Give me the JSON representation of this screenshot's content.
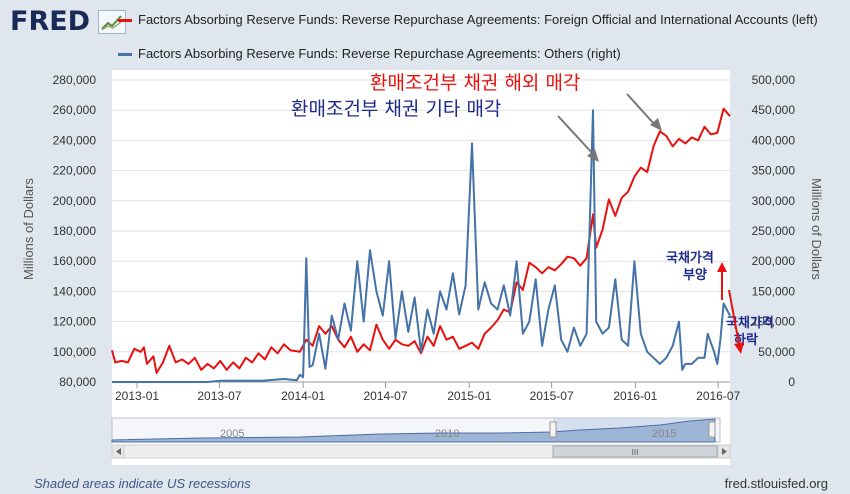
{
  "header": {
    "logo_text": "FRED",
    "logo_icon": "line-chart-icon",
    "legend": [
      {
        "label": "Factors Absorbing Reserve Funds: Reverse Repurchase Agreements: Foreign Official and International Accounts (left)",
        "color": "#e8110f"
      },
      {
        "label": "Factors Absorbing Reserve Funds: Reverse Repurchase Agreements: Others (right)",
        "color": "#4572a7"
      }
    ]
  },
  "annotations": {
    "foreign_sale": "환매조건부 채권 해외 매각",
    "other_sale": "환매조건부 채권 기타 매각",
    "bond_price_up_line1": "국채가격",
    "bond_price_up_line2": "부양",
    "bond_price_down_line1": "국채가격",
    "bond_price_down_line2": "하락"
  },
  "navigator": {
    "year_labels": [
      "2005",
      "2010",
      "2015"
    ],
    "scroll_grip": "III"
  },
  "footer": {
    "recession_note": "Shaded areas indicate US recessions",
    "source": "fred.stlouisfed.org"
  },
  "chart_data": {
    "type": "line",
    "xlabel": "",
    "x_ticks": [
      "2013-01",
      "2013-07",
      "2014-01",
      "2014-07",
      "2015-01",
      "2015-07",
      "2016-01",
      "2016-07"
    ],
    "x_range": [
      "2012-11-07",
      "2016-07-27"
    ],
    "y_left": {
      "label": "Millions of Dollars",
      "ticks": [
        "80,000",
        "100,000",
        "120,000",
        "140,000",
        "160,000",
        "180,000",
        "200,000",
        "220,000",
        "240,000",
        "260,000",
        "280,000"
      ],
      "range": [
        80000,
        280000
      ]
    },
    "y_right": {
      "label": "Millions of Dollars",
      "ticks": [
        "0",
        "50,000",
        "100,000",
        "150,000",
        "200,000",
        "250,000",
        "300,000",
        "350,000",
        "400,000",
        "450,000",
        "500,000"
      ],
      "range": [
        0,
        500000
      ]
    },
    "grid": true,
    "series": [
      {
        "name": "Factors Absorbing Reserve Funds: Reverse Repurchase Agreements: Foreign Official and International Accounts (left)",
        "axis": "left",
        "color": "#e8110f",
        "points": [
          [
            "2012-11-07",
            101000
          ],
          [
            "2012-11-14",
            93000
          ],
          [
            "2012-11-28",
            94000
          ],
          [
            "2012-12-12",
            93000
          ],
          [
            "2012-12-26",
            102000
          ],
          [
            "2013-01-09",
            100000
          ],
          [
            "2013-01-16",
            103000
          ],
          [
            "2013-01-23",
            92000
          ],
          [
            "2013-02-06",
            97000
          ],
          [
            "2013-02-13",
            86000
          ],
          [
            "2013-02-27",
            93000
          ],
          [
            "2013-03-13",
            104000
          ],
          [
            "2013-03-27",
            93000
          ],
          [
            "2013-04-10",
            95000
          ],
          [
            "2013-04-24",
            92000
          ],
          [
            "2013-05-08",
            96000
          ],
          [
            "2013-05-22",
            88000
          ],
          [
            "2013-06-05",
            92000
          ],
          [
            "2013-06-19",
            89000
          ],
          [
            "2013-07-03",
            94000
          ],
          [
            "2013-07-17",
            88000
          ],
          [
            "2013-07-31",
            93000
          ],
          [
            "2013-08-14",
            89000
          ],
          [
            "2013-08-28",
            96000
          ],
          [
            "2013-09-11",
            93000
          ],
          [
            "2013-09-25",
            99000
          ],
          [
            "2013-10-09",
            95000
          ],
          [
            "2013-10-23",
            103000
          ],
          [
            "2013-11-06",
            99000
          ],
          [
            "2013-11-20",
            105000
          ],
          [
            "2013-12-04",
            101000
          ],
          [
            "2013-12-25",
            100000
          ],
          [
            "2014-01-08",
            108000
          ],
          [
            "2014-01-22",
            104000
          ],
          [
            "2014-02-05",
            117000
          ],
          [
            "2014-02-19",
            112000
          ],
          [
            "2014-03-05",
            117000
          ],
          [
            "2014-03-19",
            108000
          ],
          [
            "2014-04-02",
            103000
          ],
          [
            "2014-04-16",
            110000
          ],
          [
            "2014-04-30",
            100000
          ],
          [
            "2014-05-14",
            105000
          ],
          [
            "2014-05-28",
            101000
          ],
          [
            "2014-06-11",
            118000
          ],
          [
            "2014-06-25",
            108000
          ],
          [
            "2014-07-09",
            102000
          ],
          [
            "2014-07-23",
            108000
          ],
          [
            "2014-08-06",
            105000
          ],
          [
            "2014-08-20",
            104000
          ],
          [
            "2014-09-03",
            107000
          ],
          [
            "2014-09-17",
            99000
          ],
          [
            "2014-10-01",
            110000
          ],
          [
            "2014-10-15",
            104000
          ],
          [
            "2014-10-29",
            117000
          ],
          [
            "2014-11-12",
            108000
          ],
          [
            "2014-11-26",
            110000
          ],
          [
            "2014-12-10",
            102000
          ],
          [
            "2014-12-24",
            104000
          ],
          [
            "2015-01-07",
            106000
          ],
          [
            "2015-01-21",
            102000
          ],
          [
            "2015-02-04",
            112000
          ],
          [
            "2015-02-18",
            116000
          ],
          [
            "2015-03-04",
            121000
          ],
          [
            "2015-03-18",
            128000
          ],
          [
            "2015-04-01",
            126000
          ],
          [
            "2015-04-15",
            146000
          ],
          [
            "2015-04-29",
            141000
          ],
          [
            "2015-05-13",
            159000
          ],
          [
            "2015-05-27",
            156000
          ],
          [
            "2015-06-10",
            152000
          ],
          [
            "2015-06-24",
            156000
          ],
          [
            "2015-07-08",
            154000
          ],
          [
            "2015-07-22",
            158000
          ],
          [
            "2015-08-05",
            163000
          ],
          [
            "2015-08-19",
            162000
          ],
          [
            "2015-09-02",
            157000
          ],
          [
            "2015-09-16",
            162000
          ],
          [
            "2015-09-30",
            191000
          ],
          [
            "2015-10-07",
            169000
          ],
          [
            "2015-10-21",
            181000
          ],
          [
            "2015-11-04",
            201000
          ],
          [
            "2015-11-18",
            190000
          ],
          [
            "2015-12-02",
            202000
          ],
          [
            "2015-12-16",
            206000
          ],
          [
            "2015-12-30",
            216000
          ],
          [
            "2016-01-13",
            222000
          ],
          [
            "2016-01-27",
            219000
          ],
          [
            "2016-02-10",
            236000
          ],
          [
            "2016-02-24",
            246000
          ],
          [
            "2016-03-09",
            243000
          ],
          [
            "2016-03-23",
            236000
          ],
          [
            "2016-04-06",
            241000
          ],
          [
            "2016-04-20",
            238000
          ],
          [
            "2016-05-04",
            242000
          ],
          [
            "2016-05-18",
            240000
          ],
          [
            "2016-06-01",
            249000
          ],
          [
            "2016-06-15",
            244000
          ],
          [
            "2016-06-29",
            245000
          ],
          [
            "2016-07-13",
            261000
          ],
          [
            "2016-07-27",
            256000
          ]
        ]
      },
      {
        "name": "Factors Absorbing Reserve Funds: Reverse Repurchase Agreements: Others (right)",
        "axis": "right",
        "color": "#4572a7",
        "points": [
          [
            "2012-11-07",
            0
          ],
          [
            "2013-06-05",
            0
          ],
          [
            "2013-07-03",
            2000
          ],
          [
            "2013-10-02",
            2000
          ],
          [
            "2013-11-20",
            5000
          ],
          [
            "2013-12-18",
            3000
          ],
          [
            "2013-12-25",
            12000
          ],
          [
            "2014-01-01",
            8000
          ],
          [
            "2014-01-08",
            205000
          ],
          [
            "2014-01-15",
            25000
          ],
          [
            "2014-01-22",
            28000
          ],
          [
            "2014-02-05",
            80000
          ],
          [
            "2014-02-19",
            22000
          ],
          [
            "2014-03-05",
            110000
          ],
          [
            "2014-03-19",
            70000
          ],
          [
            "2014-04-02",
            130000
          ],
          [
            "2014-04-16",
            85000
          ],
          [
            "2014-04-30",
            200000
          ],
          [
            "2014-05-14",
            100000
          ],
          [
            "2014-05-28",
            218000
          ],
          [
            "2014-06-11",
            150000
          ],
          [
            "2014-06-25",
            110000
          ],
          [
            "2014-07-09",
            200000
          ],
          [
            "2014-07-23",
            72000
          ],
          [
            "2014-08-06",
            150000
          ],
          [
            "2014-08-20",
            83000
          ],
          [
            "2014-09-03",
            140000
          ],
          [
            "2014-09-17",
            50000
          ],
          [
            "2014-10-01",
            120000
          ],
          [
            "2014-10-15",
            80000
          ],
          [
            "2014-10-29",
            150000
          ],
          [
            "2014-11-12",
            120000
          ],
          [
            "2014-11-26",
            180000
          ],
          [
            "2014-12-10",
            112000
          ],
          [
            "2014-12-24",
            160000
          ],
          [
            "2015-01-07",
            395000
          ],
          [
            "2015-01-21",
            120000
          ],
          [
            "2015-02-04",
            165000
          ],
          [
            "2015-02-18",
            130000
          ],
          [
            "2015-03-04",
            120000
          ],
          [
            "2015-03-18",
            160000
          ],
          [
            "2015-04-01",
            110000
          ],
          [
            "2015-04-15",
            200000
          ],
          [
            "2015-04-29",
            80000
          ],
          [
            "2015-05-13",
            100000
          ],
          [
            "2015-05-27",
            170000
          ],
          [
            "2015-06-10",
            60000
          ],
          [
            "2015-06-24",
            120000
          ],
          [
            "2015-07-08",
            160000
          ],
          [
            "2015-07-22",
            70000
          ],
          [
            "2015-08-05",
            50000
          ],
          [
            "2015-08-19",
            90000
          ],
          [
            "2015-09-02",
            60000
          ],
          [
            "2015-09-16",
            80000
          ],
          [
            "2015-09-30",
            450000
          ],
          [
            "2015-10-07",
            100000
          ],
          [
            "2015-10-21",
            80000
          ],
          [
            "2015-11-04",
            90000
          ],
          [
            "2015-11-18",
            170000
          ],
          [
            "2015-12-02",
            70000
          ],
          [
            "2015-12-16",
            60000
          ],
          [
            "2015-12-30",
            200000
          ],
          [
            "2016-01-13",
            80000
          ],
          [
            "2016-01-27",
            50000
          ],
          [
            "2016-02-10",
            40000
          ],
          [
            "2016-02-24",
            30000
          ],
          [
            "2016-03-09",
            40000
          ],
          [
            "2016-03-23",
            60000
          ],
          [
            "2016-04-06",
            100000
          ],
          [
            "2016-04-13",
            20000
          ],
          [
            "2016-04-20",
            30000
          ],
          [
            "2016-05-04",
            30000
          ],
          [
            "2016-05-18",
            40000
          ],
          [
            "2016-06-01",
            40000
          ],
          [
            "2016-06-08",
            80000
          ],
          [
            "2016-06-22",
            50000
          ],
          [
            "2016-06-29",
            30000
          ],
          [
            "2016-07-06",
            70000
          ],
          [
            "2016-07-13",
            130000
          ],
          [
            "2016-07-27",
            110000
          ]
        ]
      }
    ]
  }
}
